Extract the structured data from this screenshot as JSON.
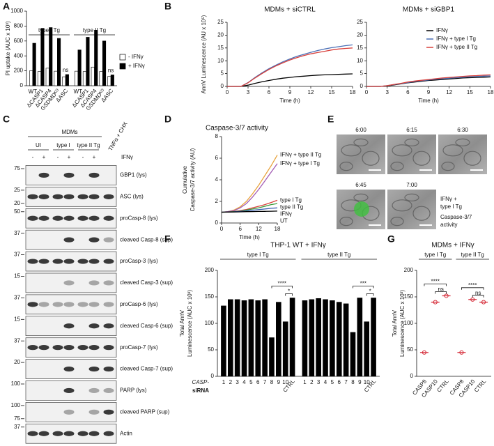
{
  "panel_labels": [
    "A",
    "B",
    "C",
    "D",
    "E",
    "F",
    "G"
  ],
  "chart_data": [
    {
      "type": "bar",
      "ylabel": "PI uptake (AUC x 10³)",
      "ylim": [
        0,
        1000
      ],
      "yticks": [
        0,
        200,
        400,
        600,
        800,
        1000
      ],
      "groups": [
        "type I Tg",
        "type II Tg"
      ],
      "categories": [
        "WT",
        "ΔCASP1",
        "ΔCASP4",
        "GSDMDᴷᴼ",
        "ΔASC"
      ],
      "series": [
        {
          "name": "- IFNγ",
          "color": "#ffffff",
          "values": [
            [
              200,
              190,
              235,
              195,
              120
            ],
            [
              195,
              190,
              250,
              190,
              125
            ]
          ]
        },
        {
          "name": "+ IFNγ",
          "color": "#000000",
          "values": [
            [
              570,
              770,
              780,
              635,
              150
            ],
            [
              480,
              650,
              745,
              600,
              145
            ]
          ]
        }
      ],
      "annotations": [
        [
          "ns"
        ],
        [
          "ns"
        ]
      ],
      "legend": "right"
    },
    {
      "type": "line",
      "title": "MDMs + siCTRL",
      "xlabel": "Time (h)",
      "ylabel": "AnnV Luminescence (AU x 10⁵)",
      "x": [
        0,
        1,
        2,
        3,
        4,
        5,
        6,
        7,
        8,
        9,
        10,
        11,
        12,
        13,
        14,
        15,
        16,
        17,
        18
      ],
      "xlim": [
        0,
        18
      ],
      "xticks": [
        0,
        3,
        6,
        9,
        12,
        15,
        18
      ],
      "ylim": [
        0,
        25
      ],
      "yticks": [
        0,
        5,
        10,
        15,
        20,
        25
      ],
      "series": [
        {
          "color": "#000000",
          "values": [
            0,
            0,
            0,
            0.5,
            1.2,
            1.8,
            2.3,
            2.8,
            3.2,
            3.5,
            3.8,
            4.0,
            4.2,
            4.4,
            4.5,
            4.6,
            4.7,
            4.8,
            4.9
          ]
        },
        {
          "color": "#4a6fb5",
          "values": [
            0,
            0,
            0,
            1.5,
            3.5,
            5.3,
            6.9,
            8.3,
            9.6,
            10.7,
            11.7,
            12.5,
            13.3,
            14.0,
            14.6,
            15.1,
            15.5,
            15.9,
            16.2
          ]
        },
        {
          "color": "#d9403b",
          "values": [
            0,
            0,
            0,
            1.4,
            3.3,
            5.0,
            6.6,
            8.0,
            9.2,
            10.3,
            11.2,
            12.0,
            12.7,
            13.2,
            13.7,
            14.2,
            14.6,
            14.8,
            15.0
          ]
        }
      ]
    },
    {
      "type": "line",
      "title": "MDMs + siGBP1",
      "xlabel": "Time (h)",
      "x": [
        0,
        1,
        2,
        3,
        4,
        5,
        6,
        7,
        8,
        9,
        10,
        11,
        12,
        13,
        14,
        15,
        16,
        17,
        18
      ],
      "xlim": [
        0,
        18
      ],
      "xticks": [
        0,
        3,
        6,
        9,
        12,
        15,
        18
      ],
      "ylim": [
        0,
        25
      ],
      "yticks": [
        0,
        5,
        10,
        15,
        20,
        25
      ],
      "legend": "upper right",
      "series": [
        {
          "name": "IFNγ",
          "color": "#000000",
          "values": [
            0,
            0,
            0,
            0.2,
            0.6,
            1.0,
            1.4,
            1.7,
            2.0,
            2.3,
            2.5,
            2.7,
            2.9,
            3.1,
            3.3,
            3.4,
            3.5,
            3.6,
            3.7
          ]
        },
        {
          "name": "IFNγ + type I Tg",
          "color": "#4a6fb5",
          "values": [
            0,
            0,
            0,
            0.3,
            0.7,
            1.1,
            1.5,
            1.9,
            2.2,
            2.5,
            2.8,
            3.0,
            3.2,
            3.4,
            3.6,
            3.8,
            3.9,
            4.0,
            4.1
          ]
        },
        {
          "name": "IFNγ + type II Tg",
          "color": "#d9403b",
          "values": [
            0,
            0,
            0,
            0.3,
            0.8,
            1.2,
            1.7,
            2.1,
            2.4,
            2.7,
            3.0,
            3.3,
            3.5,
            3.7,
            3.9,
            4.1,
            4.2,
            4.4,
            4.5
          ]
        }
      ]
    },
    {
      "type": "line",
      "title": "Caspase-3/7 activity",
      "xlabel": "Time (h)",
      "ylabel": [
        "Cumulative",
        "Caspase-3/7 activity (AU)"
      ],
      "x": [
        0,
        2,
        4,
        6,
        8,
        10,
        12,
        14,
        16,
        18
      ],
      "xlim": [
        0,
        18
      ],
      "xticks": [
        0,
        6,
        12,
        18
      ],
      "ylim": [
        0,
        8
      ],
      "yticks": [
        0,
        2,
        4,
        6,
        8
      ],
      "legend": "inline",
      "series": [
        {
          "name": "IFNγ + type II Tg",
          "color": "#e8a33d",
          "values": [
            1,
            1.05,
            1.2,
            1.5,
            2.0,
            2.7,
            3.5,
            4.4,
            5.3,
            6.3
          ]
        },
        {
          "name": "IFNγ + type I Tg",
          "color": "#a35db5",
          "values": [
            1,
            1.05,
            1.15,
            1.4,
            1.8,
            2.4,
            3.1,
            3.9,
            4.7,
            5.5
          ]
        },
        {
          "name": "type I Tg",
          "color": "#d9403b",
          "values": [
            1,
            1.02,
            1.07,
            1.15,
            1.25,
            1.4,
            1.55,
            1.7,
            1.9,
            2.1
          ]
        },
        {
          "name": "type II Tg",
          "color": "#3a9a3a",
          "values": [
            1,
            1.02,
            1.05,
            1.1,
            1.2,
            1.3,
            1.4,
            1.55,
            1.7,
            1.8
          ]
        },
        {
          "name": "IFNγ",
          "color": "#3c5fb0",
          "values": [
            1,
            1.02,
            1.04,
            1.08,
            1.12,
            1.18,
            1.24,
            1.3,
            1.36,
            1.4
          ]
        },
        {
          "name": "UT",
          "color": "#000000",
          "values": [
            1,
            1.01,
            1.02,
            1.03,
            1.05,
            1.06,
            1.07,
            1.08,
            1.09,
            1.1
          ]
        }
      ]
    },
    {
      "type": "bar",
      "title": "THP-1 WT + IFNγ",
      "ylabel": [
        "Total AnnV",
        "Luminescence (AUC x 10³)"
      ],
      "ylim": [
        0,
        200
      ],
      "yticks": [
        0,
        50,
        100,
        150,
        200
      ],
      "groups": [
        "type I Tg",
        "type II Tg"
      ],
      "categories": [
        "1",
        "2",
        "3",
        "4",
        "5",
        "6",
        "7",
        "8",
        "9",
        "10",
        "CTRL"
      ],
      "xprefix": "CASP-",
      "xgroup": "siRNA",
      "color": "#000000",
      "values": [
        [
          133,
          145,
          145,
          143,
          145,
          143,
          145,
          73,
          140,
          103,
          148
        ],
        [
          143,
          145,
          147,
          145,
          143,
          140,
          137,
          83,
          148,
          103,
          148
        ]
      ],
      "annotations": [
        [
          "****",
          "*"
        ],
        [
          "***",
          "*"
        ]
      ]
    },
    {
      "type": "dot",
      "title": "MDMs + IFNγ",
      "ylabel": [
        "Total AnnV",
        "Luminescence (AUC x 10³)"
      ],
      "ylim": [
        0,
        200
      ],
      "yticks": [
        0,
        50,
        100,
        150,
        200
      ],
      "groups": [
        "type I Tg",
        "type II Tg"
      ],
      "categories": [
        "CASP8",
        "CASP10",
        "CTRL"
      ],
      "color": "#d62d3a",
      "values": [
        [
          45,
          140,
          152
        ],
        [
          45,
          145,
          140
        ]
      ],
      "annotations": [
        [
          "****",
          "ns"
        ],
        [
          "****",
          "ns"
        ]
      ]
    }
  ],
  "blot": {
    "header": "MDMs",
    "conditions": [
      "UI",
      "type I",
      "type II Tg",
      "TNFα + CHX"
    ],
    "treatment": "IFNγ",
    "signs": [
      "-",
      "+",
      "-",
      "+",
      "-",
      "+"
    ],
    "rows": [
      {
        "label": "GBP1 (lys)",
        "markers": [
          75
        ]
      },
      {
        "label": "ASC (lys)",
        "markers": [
          25,
          20
        ]
      },
      {
        "label": "proCasp-8 (lys)",
        "markers": [
          50
        ]
      },
      {
        "label": "cleaved Casp-8 (sup)",
        "markers": [
          37
        ]
      },
      {
        "label": "proCasp-3 (lys)",
        "markers": [
          37
        ]
      },
      {
        "label": "cleaved Casp-3 (sup)",
        "markers": [
          15
        ]
      },
      {
        "label": "proCasp-6 (lys)",
        "markers": [
          37
        ]
      },
      {
        "label": "cleaved Casp-6 (sup)",
        "markers": [
          15
        ]
      },
      {
        "label": "proCasp-7 (lys)",
        "markers": [
          37
        ]
      },
      {
        "label": "cleaved Casp-7 (sup)",
        "markers": [
          20
        ]
      },
      {
        "label": "PARP (lys)",
        "markers": [
          100
        ]
      },
      {
        "label": "cleaved PARP (sup)",
        "markers": [
          100,
          75
        ]
      },
      {
        "label": "Actin",
        "markers": [
          37
        ]
      }
    ]
  },
  "timelapse": {
    "frames": [
      "6:00",
      "6:15",
      "6:30",
      "6:45",
      "7:00"
    ],
    "caption": [
      "IFNγ +",
      "type I Tg"
    ],
    "activity": [
      "Caspase-3/7",
      "activity"
    ]
  }
}
